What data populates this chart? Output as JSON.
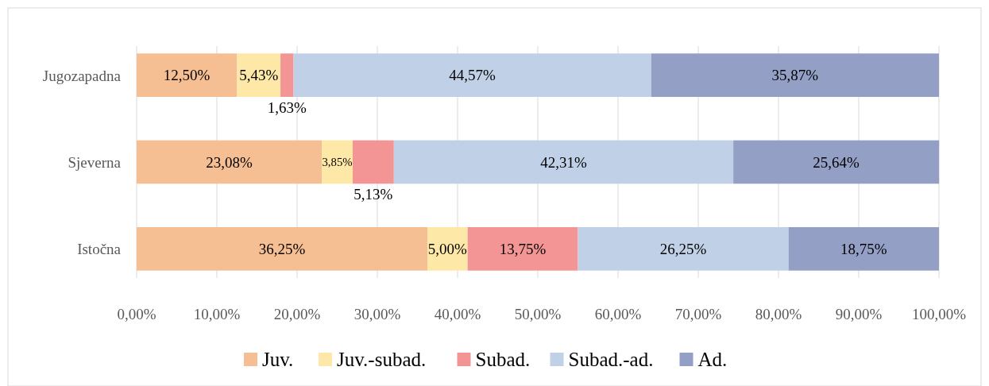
{
  "chart_data": {
    "type": "bar",
    "orientation": "horizontal",
    "stacked": true,
    "categories": [
      "Jugozapadna",
      "Sjeverna",
      "Istočna"
    ],
    "series": [
      {
        "name": "Juv.",
        "color": "#f5bf93",
        "values": [
          12.5,
          23.08,
          36.25
        ],
        "value_labels": [
          "12,50%",
          "23,08%",
          "36,25%"
        ]
      },
      {
        "name": "Juv.-subad.",
        "color": "#fde8a8",
        "values": [
          5.43,
          3.85,
          5.0
        ],
        "value_labels": [
          "5,43%",
          "3,85%",
          "5,00%"
        ]
      },
      {
        "name": "Subad.",
        "color": "#f29594",
        "values": [
          1.63,
          5.13,
          13.75
        ],
        "value_labels": [
          "1,63%",
          "5,13%",
          "13,75%"
        ]
      },
      {
        "name": "Subad.-ad.",
        "color": "#c0d0e6",
        "values": [
          44.57,
          42.31,
          26.25
        ],
        "value_labels": [
          "44,57%",
          "42,31%",
          "26,25%"
        ]
      },
      {
        "name": "Ad.",
        "color": "#939fc5",
        "values": [
          35.87,
          25.64,
          18.75
        ],
        "value_labels": [
          "35,87%",
          "25,64%",
          "18,75%"
        ]
      }
    ],
    "xlim": [
      0,
      100
    ],
    "xticks": [
      {
        "value": 0,
        "label": "0,00%"
      },
      {
        "value": 10,
        "label": "10,00%"
      },
      {
        "value": 20,
        "label": "20,00%"
      },
      {
        "value": 30,
        "label": "30,00%"
      },
      {
        "value": 40,
        "label": "40,00%"
      },
      {
        "value": 50,
        "label": "50,00%"
      },
      {
        "value": 60,
        "label": "60,00%"
      },
      {
        "value": 70,
        "label": "70,00%"
      },
      {
        "value": 80,
        "label": "80,00%"
      },
      {
        "value": 90,
        "label": "90,00%"
      },
      {
        "value": 100,
        "label": "100,00%"
      }
    ],
    "grid": "x",
    "legend": "bottom"
  }
}
